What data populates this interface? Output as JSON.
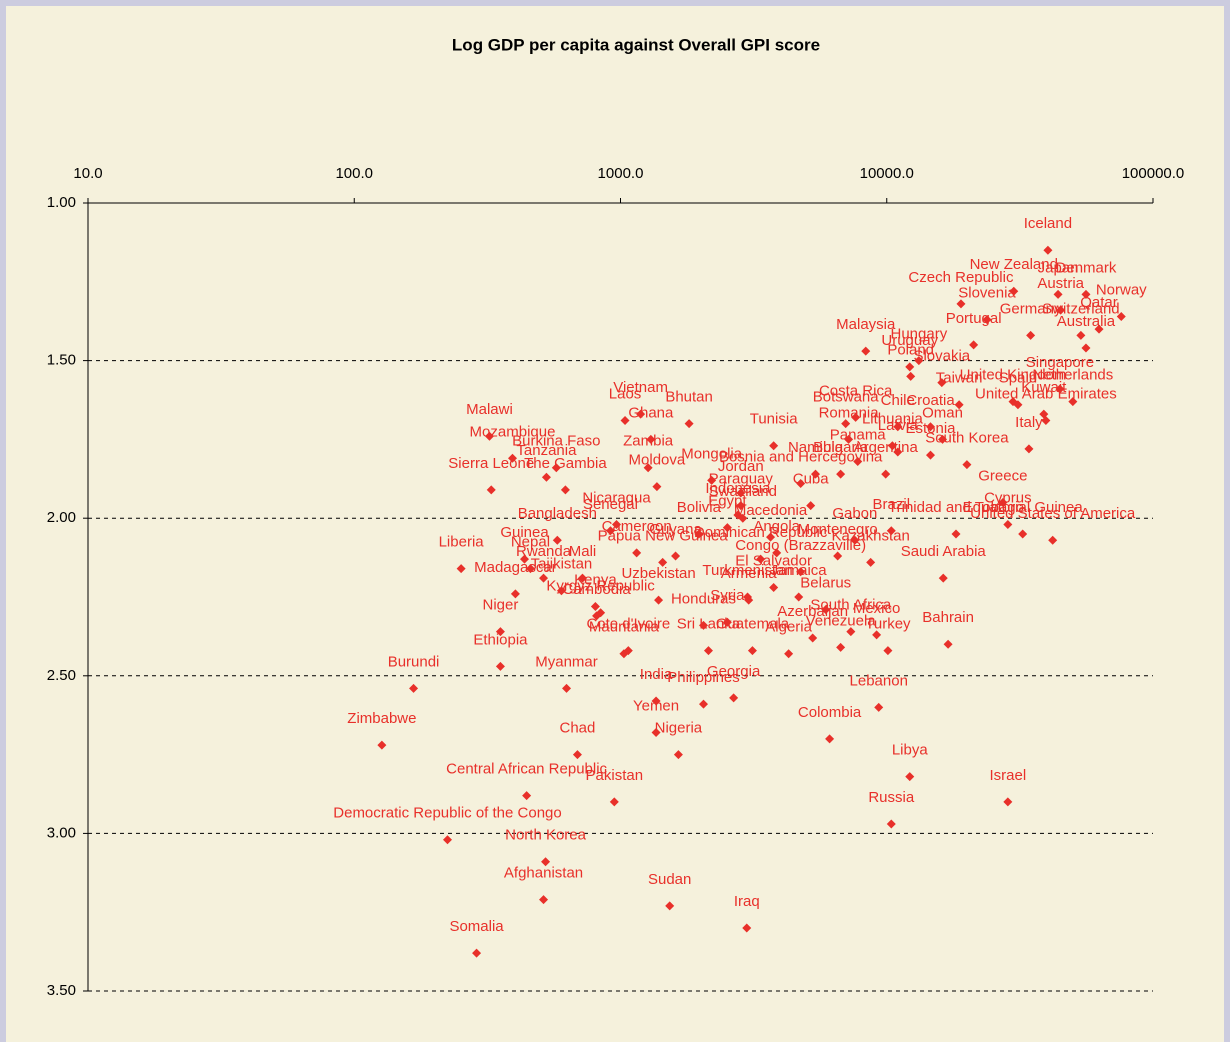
{
  "chart_data": {
    "type": "scatter",
    "title": "Log GDP per capita against Overall GPI score",
    "xlog": true,
    "xaxis_position": "top",
    "yinvert": true,
    "grid": true,
    "xlim": [
      10,
      100000
    ],
    "xticks": [
      {
        "value": 10,
        "label": "10.0"
      },
      {
        "value": 100,
        "label": "100.0"
      },
      {
        "value": 1000,
        "label": "1000.0"
      },
      {
        "value": 10000,
        "label": "10000.0"
      },
      {
        "value": 100000,
        "label": "100000.0"
      }
    ],
    "ylim": [
      1,
      3.5
    ],
    "yticks": [
      {
        "value": 1,
        "label": "1.00"
      },
      {
        "value": 1.5,
        "label": "1.50"
      },
      {
        "value": 2,
        "label": "2.00"
      },
      {
        "value": 2.5,
        "label": "2.50"
      },
      {
        "value": 3,
        "label": "3.00"
      },
      {
        "value": 3.5,
        "label": "3.50"
      }
    ],
    "point_labels": [
      "Iceland",
      "New Zealand",
      "Japan",
      "Denmark",
      "Norway",
      "Czech Republic",
      "Slovenia",
      "Austria",
      "Qatar",
      "Germany",
      "Switzerland",
      "Australia",
      "Portugal",
      "Malaysia",
      "Hungary",
      "Uruguay",
      "Poland",
      "Slovakia",
      "Singapore",
      "Netherlands",
      "United Kingdom",
      "Spain",
      "Taiwan",
      "Kuwait",
      "United Arab Emirates",
      "Italy",
      "Costa Rica",
      "Botswana",
      "Chile",
      "Croatia",
      "Oman",
      "Romania",
      "Lithuania",
      "Latvia",
      "Estonia",
      "Panama",
      "Argentina",
      "South Korea",
      "Greece",
      "Cyprus",
      "Equatorial Guinea",
      "United States of America",
      "Trinidad and Tobago",
      "Brazil",
      "Gabon",
      "Saudi Arabia",
      "Bahrain",
      "Lebanon",
      "Libya",
      "Israel",
      "Russia",
      "Colombia",
      "Tunisia",
      "Namibia",
      "Bulgaria",
      "Bosnia and Hercegovina",
      "Mongolia",
      "Moldova",
      "Jordan",
      "Cuba",
      "Paraguay",
      "Indonesia",
      "Swaziland",
      "Egypt",
      "Macedonia",
      "Montenegro",
      "Kazakhstan",
      "Angola",
      "Dominican Republic",
      "Congo (Brazzaville)",
      "El Salvador",
      "Turkmenistan",
      "Jamaica",
      "Armenia",
      "Belarus",
      "South Africa",
      "Mexico",
      "Azerbaijan",
      "Venezuela",
      "Turkey",
      "Algeria",
      "Guatemala",
      "Sri Lanka",
      "Syria",
      "Honduras",
      "Bolivia",
      "Guyana",
      "Papua New Guinea",
      "Cameroon",
      "Uzbekistan",
      "Cote d'Ivoire",
      "Mauritania",
      "India",
      "Philippines",
      "Georgia",
      "Yemen",
      "Nigeria",
      "Sudan",
      "Iraq",
      "Chad",
      "Pakistan",
      "Central African Republic",
      "Democratic Republic of the Congo",
      "North Korea",
      "Afghanistan",
      "Somalia",
      "Zimbabwe",
      "Burundi",
      "Myanmar",
      "Ethiopia",
      "Niger",
      "Liberia",
      "Madagascar",
      "Guinea",
      "Rwanda",
      "Mali",
      "Tajikistan",
      "Kenya",
      "Kyrgyz Republic",
      "Cambodia",
      "Nepal",
      "Bangladesh",
      "Senegal",
      "Nicaragua",
      "Malawi",
      "Mozambique",
      "Burkina Faso",
      "Tanzania",
      "Sierra Leone",
      "The Gambia",
      "Laos",
      "Vietnam",
      "Bhutan",
      "Ghana",
      "Zambia"
    ],
    "x": [
      40300,
      30000,
      44000,
      56000,
      76000,
      19000,
      23800,
      45000,
      62700,
      34700,
      53600,
      56000,
      21200,
      8340,
      13200,
      12200,
      12300,
      16100,
      44700,
      50000,
      29800,
      31100,
      18700,
      38900,
      39600,
      34200,
      7640,
      7010,
      11000,
      14600,
      16200,
      7190,
      10500,
      11000,
      14600,
      7780,
      9910,
      20000,
      27300,
      28500,
      32400,
      42000,
      18200,
      10400,
      7590,
      16300,
      17000,
      9330,
      12200,
      28500,
      10400,
      6100,
      3760,
      5400,
      6710,
      4750,
      2200,
      1370,
      2830,
      5180,
      2830,
      2760,
      2880,
      2520,
      3660,
      6540,
      8700,
      3860,
      3360,
      4750,
      3760,
      3000,
      4670,
      3030,
      5900,
      7330,
      9160,
      5270,
      6710,
      10100,
      4280,
      3130,
      2140,
      2520,
      2050,
      1970,
      1610,
      1440,
      1150,
      1390,
      1070,
      1030,
      1360,
      2050,
      2660,
      1360,
      1650,
      1530,
      2980,
      689,
      948,
      444,
      224,
      523,
      514,
      288,
      127,
      167,
      627,
      354,
      354,
      252,
      403,
      436,
      514,
      720,
      600,
      805,
      842,
      813,
      459,
      579,
      917,
      966,
      322,
      393,
      574,
      527,
      327,
      621,
      1040,
      1190,
      1810,
      1300,
      1270
    ],
    "series": [
      {
        "color": "#e8302a",
        "values": [
          1.15,
          1.28,
          1.29,
          1.29,
          1.36,
          1.32,
          1.37,
          1.34,
          1.4,
          1.42,
          1.42,
          1.46,
          1.45,
          1.47,
          1.5,
          1.52,
          1.55,
          1.57,
          1.59,
          1.63,
          1.63,
          1.64,
          1.64,
          1.67,
          1.69,
          1.78,
          1.68,
          1.7,
          1.71,
          1.71,
          1.75,
          1.75,
          1.77,
          1.79,
          1.8,
          1.82,
          1.86,
          1.83,
          1.95,
          2.02,
          2.05,
          2.07,
          2.05,
          2.04,
          2.07,
          2.19,
          2.4,
          2.6,
          2.82,
          2.9,
          2.97,
          2.7,
          1.77,
          1.86,
          1.86,
          1.89,
          1.88,
          1.9,
          1.92,
          1.96,
          1.96,
          1.99,
          2.0,
          2.03,
          2.06,
          2.12,
          2.14,
          2.11,
          2.13,
          2.17,
          2.22,
          2.25,
          2.25,
          2.26,
          2.29,
          2.36,
          2.37,
          2.38,
          2.41,
          2.42,
          2.43,
          2.42,
          2.42,
          2.33,
          2.34,
          2.05,
          2.12,
          2.14,
          2.11,
          2.26,
          2.42,
          2.43,
          2.58,
          2.59,
          2.57,
          2.68,
          2.75,
          3.23,
          3.3,
          2.75,
          2.9,
          2.88,
          3.02,
          3.09,
          3.21,
          3.38,
          2.72,
          2.54,
          2.54,
          2.47,
          2.36,
          2.16,
          2.24,
          2.13,
          2.19,
          2.19,
          2.23,
          2.28,
          2.3,
          2.31,
          2.16,
          2.07,
          2.04,
          2.02,
          1.74,
          1.81,
          1.84,
          1.87,
          1.91,
          1.91,
          1.69,
          1.67,
          1.7,
          1.75,
          1.84
        ]
      }
    ]
  }
}
